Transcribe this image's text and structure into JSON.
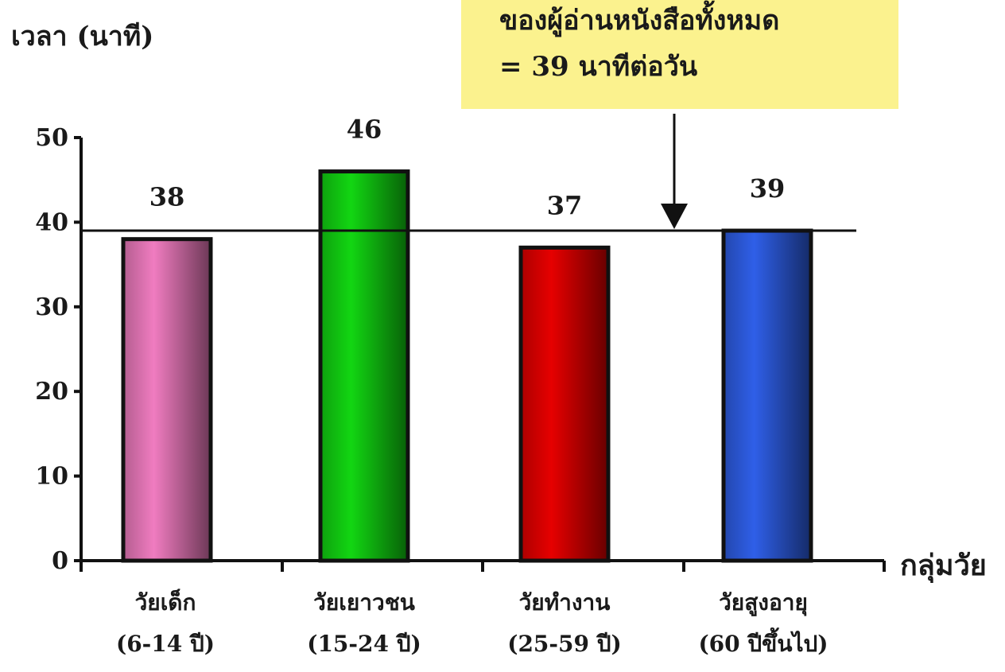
{
  "chart_data": {
    "type": "bar",
    "categories": [
      {
        "name": "วัยเด็ก",
        "range": "(6-14 ปี)"
      },
      {
        "name": "วัยเยาวชน",
        "range": "(15-24 ปี)"
      },
      {
        "name": "วัยทำงาน",
        "range": "(25-59 ปี)"
      },
      {
        "name": "วัยสูงอายุ",
        "range": "(60 ปีขึ้นไป)"
      }
    ],
    "values": [
      38,
      46,
      37,
      39
    ],
    "data_labels": [
      "38",
      "46",
      "37",
      "39"
    ],
    "ylabel": "เวลา (นาที)",
    "xlabel": "กลุ่มวัย",
    "ylim": [
      0,
      50
    ],
    "yticks": [
      "0",
      "10",
      "20",
      "30",
      "40",
      "50"
    ],
    "average_line": 39,
    "bar_colors": [
      "#f07cc0",
      "#12d612",
      "#e60000",
      "#2f5fe8"
    ],
    "grid": false,
    "annotation": {
      "line1": "ของผู้อ่านหนังสือทั้งหมด",
      "line2": "= 39 นาทีต่อวัน",
      "background": "#fbf28e"
    }
  }
}
